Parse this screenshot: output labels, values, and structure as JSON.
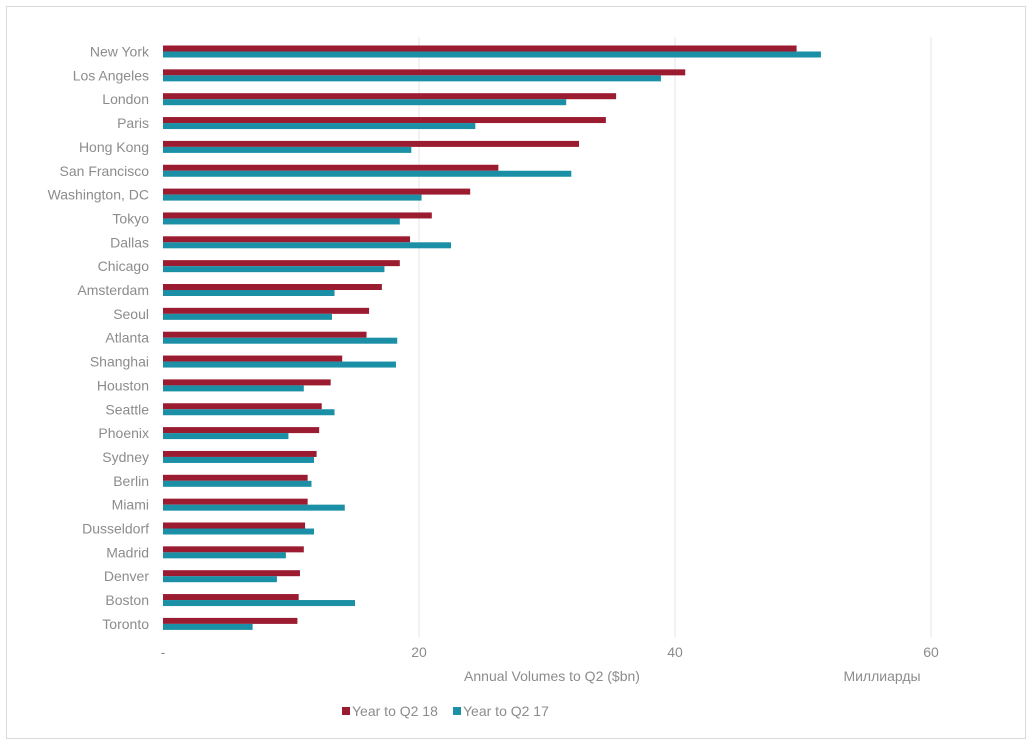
{
  "chart_data": {
    "type": "bar",
    "orientation": "horizontal",
    "categories": [
      "New York",
      "Los Angeles",
      "London",
      "Paris",
      "Hong Kong",
      "San Francisco",
      "Washington, DC",
      "Tokyo",
      "Dallas",
      "Chicago",
      "Amsterdam",
      "Seoul",
      "Atlanta",
      "Shanghai",
      "Houston",
      "Seattle",
      "Phoenix",
      "Sydney",
      "Berlin",
      "Miami",
      "Dusseldorf",
      "Madrid",
      "Denver",
      "Boston",
      "Toronto"
    ],
    "series": [
      {
        "name": "Year to Q2 18",
        "color": "#9b1b30",
        "values": [
          49.5,
          40.8,
          35.4,
          34.6,
          32.5,
          26.2,
          24.0,
          21.0,
          19.3,
          18.5,
          17.1,
          16.1,
          15.9,
          14.0,
          13.1,
          12.4,
          12.2,
          12.0,
          11.3,
          11.3,
          11.1,
          11.0,
          10.7,
          10.6,
          10.5
        ]
      },
      {
        "name": "Year to Q2 17",
        "color": "#1a8fa5",
        "values": [
          51.4,
          38.9,
          31.5,
          24.4,
          19.4,
          31.9,
          20.2,
          18.5,
          22.5,
          17.3,
          13.4,
          13.2,
          18.3,
          18.2,
          11.0,
          13.4,
          9.8,
          11.8,
          11.6,
          14.2,
          11.8,
          9.6,
          8.9,
          15.0,
          7.0
        ]
      }
    ],
    "xlim": [
      0,
      60
    ],
    "x_ticks": [
      "-",
      "20",
      "40",
      "60"
    ],
    "xlabel": "Annual Volumes to Q2 ($bn)",
    "unit_label": "Миллиарды",
    "grid": "vertical",
    "legend_position": "bottom"
  }
}
